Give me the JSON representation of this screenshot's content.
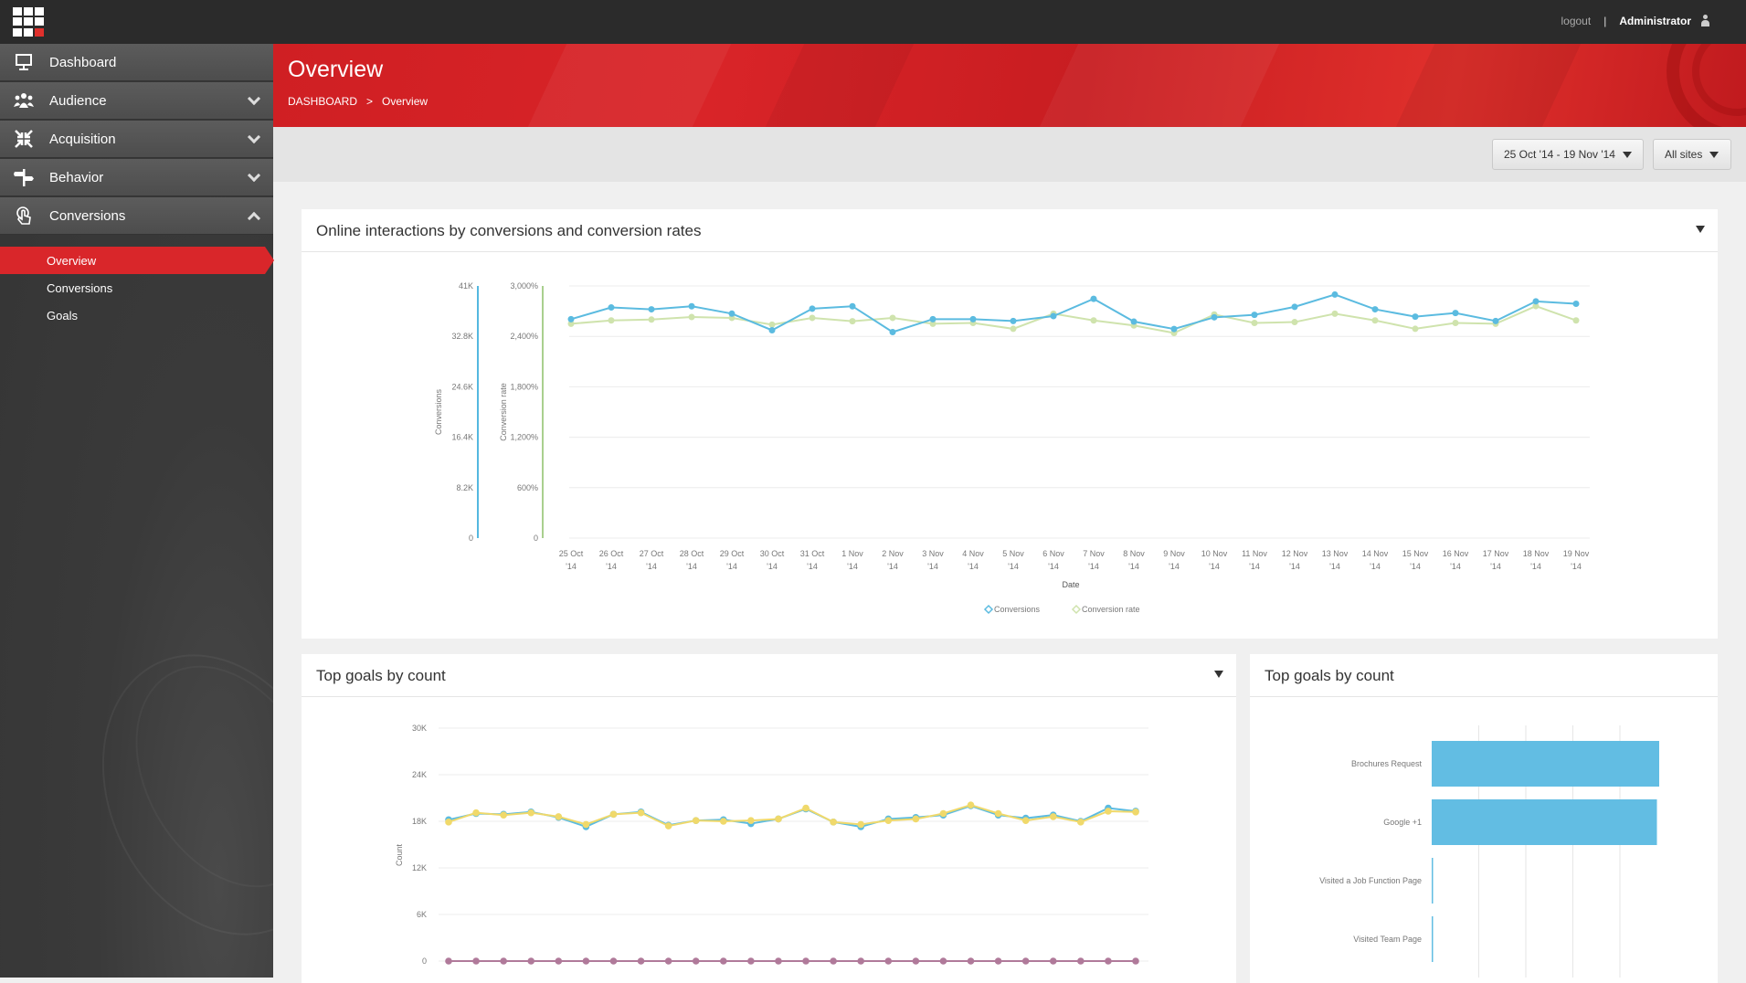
{
  "topbar": {
    "logout": "logout",
    "separator": "|",
    "user": "Administrator"
  },
  "sidebar": {
    "items": [
      {
        "label": "Dashboard"
      },
      {
        "label": "Audience"
      },
      {
        "label": "Acquisition"
      },
      {
        "label": "Behavior"
      },
      {
        "label": "Conversions"
      }
    ],
    "sub_items": [
      {
        "label": "Overview",
        "active": true
      },
      {
        "label": "Conversions"
      },
      {
        "label": "Goals"
      }
    ]
  },
  "header": {
    "title": "Overview",
    "breadcrumb_root": "DASHBOARD",
    "breadcrumb_sep": ">",
    "breadcrumb_current": "Overview"
  },
  "toolbar": {
    "date_range": "25 Oct '14 - 19 Nov '14",
    "sites": "All sites"
  },
  "panels": {
    "main": {
      "title": "Online interactions by conversions and conversion rates"
    },
    "goals_line": {
      "title": "Top goals by count"
    },
    "goals_bar": {
      "title": "Top goals by count"
    }
  },
  "chart_data": [
    {
      "type": "line",
      "xlabel": "Date",
      "categories": [
        "25 Oct '14",
        "26 Oct '14",
        "27 Oct '14",
        "28 Oct '14",
        "29 Oct '14",
        "30 Oct '14",
        "31 Oct '14",
        "1 Nov '14",
        "2 Nov '14",
        "3 Nov '14",
        "4 Nov '14",
        "5 Nov '14",
        "6 Nov '14",
        "7 Nov '14",
        "8 Nov '14",
        "9 Nov '14",
        "10 Nov '14",
        "11 Nov '14",
        "12 Nov '14",
        "13 Nov '14",
        "14 Nov '14",
        "15 Nov '14",
        "16 Nov '14",
        "17 Nov '14",
        "18 Nov '14",
        "19 Nov '14"
      ],
      "y_axes": [
        {
          "label": "Conversions",
          "ticks": [
            "0",
            "8.2K",
            "16.4K",
            "24.6K",
            "32.8K",
            "41K"
          ],
          "ylim": [
            0,
            41000
          ],
          "color": "#55b8e0"
        },
        {
          "label": "Conversion rate",
          "ticks": [
            "0",
            "600%",
            "1,200%",
            "1,800%",
            "2,400%",
            "3,000%"
          ],
          "ylim": [
            0,
            3000
          ],
          "color": "#a9d08e"
        }
      ],
      "series": [
        {
          "name": "Conversions",
          "axis": 0,
          "color": "#5bbbe0",
          "values": [
            35600,
            37500,
            37200,
            37700,
            36500,
            33800,
            37300,
            37700,
            33500,
            35600,
            35600,
            35300,
            36100,
            38900,
            35200,
            34000,
            35900,
            36300,
            37600,
            39600,
            37200,
            36000,
            36600,
            35300,
            38500,
            38100
          ]
        },
        {
          "name": "Conversion rate",
          "axis": 1,
          "color": "#cfe3ad",
          "values": [
            2550,
            2590,
            2600,
            2630,
            2620,
            2540,
            2620,
            2580,
            2620,
            2550,
            2560,
            2490,
            2670,
            2590,
            2530,
            2440,
            2660,
            2560,
            2570,
            2670,
            2590,
            2490,
            2560,
            2550,
            2760,
            2590
          ]
        }
      ],
      "legend": "bottom",
      "grid": true
    },
    {
      "type": "line",
      "ylabel": "Count",
      "ticks": [
        "0",
        "6K",
        "12K",
        "18K",
        "24K",
        "30K"
      ],
      "ylim": [
        0,
        30000
      ],
      "grid": true,
      "series": [
        {
          "color": "#5bbbe0",
          "values": [
            18200,
            19000,
            18900,
            19200,
            18500,
            17300,
            18900,
            19200,
            17500,
            18100,
            18200,
            17700,
            18300,
            19600,
            17900,
            17300,
            18300,
            18500,
            18800,
            20000,
            18800,
            18400,
            18800,
            18000,
            19700,
            19300
          ]
        },
        {
          "color": "#f0d96b",
          "values": [
            17900,
            19100,
            18800,
            19100,
            18600,
            17600,
            18900,
            19100,
            17400,
            18100,
            18000,
            18100,
            18300,
            19700,
            17900,
            17600,
            18100,
            18300,
            19000,
            20100,
            19000,
            18100,
            18600,
            17900,
            19300,
            19200
          ]
        },
        {
          "color": "#b07a9a",
          "values": [
            0,
            0,
            0,
            0,
            0,
            0,
            0,
            0,
            0,
            0,
            0,
            0,
            0,
            0,
            0,
            0,
            0,
            0,
            0,
            0,
            0,
            0,
            0,
            0,
            0,
            0
          ]
        }
      ]
    },
    {
      "type": "bar",
      "orientation": "horizontal",
      "categories": [
        "Brochures Request",
        "Google +1",
        "Visited a Job Function Page",
        "Visited Team Page"
      ],
      "values": [
        100,
        99,
        0.5,
        0.5
      ],
      "color": "#62bde3",
      "grid": true
    }
  ]
}
